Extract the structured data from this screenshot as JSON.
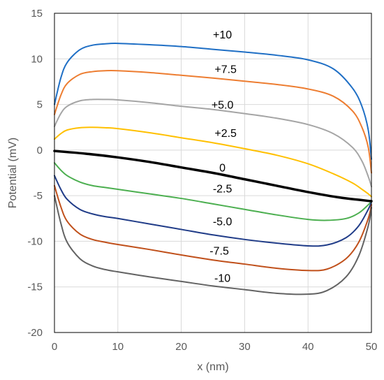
{
  "chart_data": {
    "type": "line",
    "title": "",
    "xlabel": "x (nm)",
    "ylabel": "Potential (mV)",
    "xlim": [
      0,
      50
    ],
    "ylim": [
      -20,
      15
    ],
    "xticks": [
      0,
      10,
      20,
      30,
      40,
      50
    ],
    "yticks": [
      -20,
      -15,
      -10,
      -5,
      0,
      5,
      10,
      15
    ],
    "grid": true,
    "legend": "none",
    "series": [
      {
        "name": "+10",
        "color": "#1f6fc5",
        "width": 2,
        "x": [
          0,
          1,
          2,
          4,
          6,
          8,
          10,
          15,
          20,
          25,
          30,
          35,
          40,
          44,
          47,
          48.5,
          49.5,
          50
        ],
        "y": [
          5.0,
          7.9,
          9.6,
          11.0,
          11.5,
          11.65,
          11.7,
          11.55,
          11.35,
          11.05,
          10.75,
          10.4,
          9.9,
          8.9,
          6.8,
          4.8,
          2.2,
          -1.0
        ]
      },
      {
        "name": "+7.5",
        "color": "#ed7d31",
        "width": 2,
        "x": [
          0,
          1,
          2,
          4,
          6,
          8,
          10,
          15,
          20,
          25,
          30,
          35,
          40,
          44,
          47,
          48.5,
          49.5,
          50
        ],
        "y": [
          3.9,
          6.0,
          7.3,
          8.3,
          8.6,
          8.7,
          8.7,
          8.5,
          8.2,
          7.9,
          7.55,
          7.2,
          6.7,
          5.9,
          4.3,
          2.5,
          0.3,
          -2.5
        ]
      },
      {
        "name": "+5.0",
        "color": "#a5a5a5",
        "width": 2,
        "x": [
          0,
          1,
          2,
          4,
          6,
          8,
          10,
          15,
          20,
          25,
          30,
          35,
          40,
          44,
          47,
          48.5,
          49.5,
          50
        ],
        "y": [
          2.6,
          4.0,
          4.8,
          5.4,
          5.55,
          5.55,
          5.5,
          5.2,
          4.8,
          4.45,
          4.0,
          3.5,
          2.8,
          1.8,
          0.3,
          -1.2,
          -2.9,
          -4.0
        ]
      },
      {
        "name": "+2.5",
        "color": "#ffc000",
        "width": 2,
        "x": [
          0,
          1,
          2,
          4,
          6,
          8,
          10,
          15,
          20,
          25,
          30,
          35,
          40,
          44,
          47,
          48.5,
          49.5,
          50
        ],
        "y": [
          1.2,
          1.8,
          2.2,
          2.45,
          2.5,
          2.45,
          2.35,
          1.9,
          1.35,
          0.8,
          0.15,
          -0.55,
          -1.5,
          -2.6,
          -3.6,
          -4.3,
          -4.8,
          -5.1
        ]
      },
      {
        "name": "0",
        "color": "#000000",
        "width": 3.5,
        "x": [
          0,
          5,
          10,
          15,
          20,
          25,
          30,
          35,
          40,
          45,
          50
        ],
        "y": [
          -0.1,
          -0.4,
          -0.8,
          -1.3,
          -1.9,
          -2.5,
          -3.2,
          -3.9,
          -4.6,
          -5.2,
          -5.6
        ]
      },
      {
        "name": "-2.5",
        "color": "#4caf50",
        "width": 2,
        "x": [
          0,
          1,
          2,
          4,
          6,
          8,
          10,
          15,
          20,
          25,
          30,
          35,
          40,
          43,
          46,
          48,
          49.5,
          50
        ],
        "y": [
          -1.4,
          -2.2,
          -2.8,
          -3.5,
          -3.9,
          -4.1,
          -4.3,
          -4.8,
          -5.3,
          -5.9,
          -6.5,
          -7.1,
          -7.6,
          -7.7,
          -7.5,
          -6.9,
          -6.0,
          -5.6
        ]
      },
      {
        "name": "-5.0",
        "color": "#203c88",
        "width": 2,
        "x": [
          0,
          1,
          2,
          4,
          6,
          8,
          10,
          15,
          20,
          25,
          30,
          35,
          40,
          43,
          46,
          48,
          49.5,
          50
        ],
        "y": [
          -2.8,
          -4.3,
          -5.4,
          -6.5,
          -7.0,
          -7.3,
          -7.5,
          -8.1,
          -8.7,
          -9.3,
          -9.8,
          -10.2,
          -10.5,
          -10.4,
          -9.6,
          -8.3,
          -6.5,
          -5.7
        ]
      },
      {
        "name": "-7.5",
        "color": "#c0501b",
        "width": 2,
        "x": [
          0,
          1,
          2,
          4,
          6,
          8,
          10,
          15,
          20,
          25,
          30,
          35,
          40,
          43,
          46,
          48,
          49.5,
          50
        ],
        "y": [
          -3.9,
          -6.2,
          -7.8,
          -9.2,
          -9.8,
          -10.1,
          -10.35,
          -10.9,
          -11.5,
          -12.05,
          -12.5,
          -12.95,
          -13.2,
          -13.05,
          -11.9,
          -10.1,
          -7.5,
          -6.0
        ]
      },
      {
        "name": "-10",
        "color": "#636363",
        "width": 2,
        "x": [
          0,
          1,
          2,
          4,
          6,
          8,
          10,
          15,
          20,
          25,
          30,
          35,
          40,
          43,
          46,
          48,
          49.5,
          50
        ],
        "y": [
          -5.0,
          -8.0,
          -10.1,
          -11.9,
          -12.7,
          -13.1,
          -13.35,
          -13.9,
          -14.4,
          -14.9,
          -15.3,
          -15.7,
          -15.8,
          -15.4,
          -13.9,
          -11.6,
          -8.3,
          -6.3
        ]
      }
    ],
    "annotations": [
      {
        "text": "+10",
        "x": 26.5,
        "y": 12.7
      },
      {
        "text": "+7.5",
        "x": 27.0,
        "y": 8.9
      },
      {
        "text": "+5.0",
        "x": 26.5,
        "y": 5.0
      },
      {
        "text": "+2.5",
        "x": 27.0,
        "y": 1.9
      },
      {
        "text": "0",
        "x": 26.5,
        "y": -1.9
      },
      {
        "text": "-2.5",
        "x": 26.5,
        "y": -4.2
      },
      {
        "text": "-5.0",
        "x": 26.5,
        "y": -7.8
      },
      {
        "text": "-7.5",
        "x": 26.0,
        "y": -11.0
      },
      {
        "text": "-10",
        "x": 26.5,
        "y": -14.0
      }
    ]
  }
}
